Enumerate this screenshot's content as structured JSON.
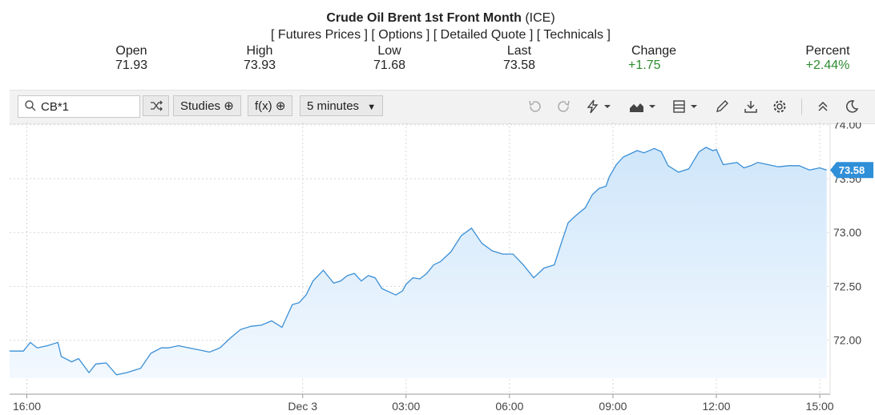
{
  "header": {
    "title_bold": "Crude Oil Brent 1st Front Month",
    "title_exchange": "(ICE)",
    "links": [
      "[ Futures Prices ]",
      "[ Options ]",
      "[ Detailed Quote ]",
      "[ Technicals ]"
    ]
  },
  "stats": [
    {
      "label": "Open",
      "value": "71.93"
    },
    {
      "label": "High",
      "value": "73.93"
    },
    {
      "label": "Low",
      "value": "71.68"
    },
    {
      "label": "Last",
      "value": "73.58"
    },
    {
      "label": "Change",
      "value": "+1.75"
    },
    {
      "label": "Percent",
      "value": "+2.44%"
    }
  ],
  "toolbar": {
    "symbol": "CB*1",
    "studies_label": "Studies",
    "fx_label": "f(x)",
    "interval_label": "5 minutes",
    "icons": [
      "undo-icon",
      "redo-icon",
      "flash-icon",
      "chart-type-icon",
      "template-icon",
      "draw-icon",
      "download-icon",
      "settings-icon",
      "collapse-icon",
      "dark-mode-icon"
    ]
  },
  "colors": {
    "line": "#3a8fd6",
    "fill_top": "#cfe6fa",
    "fill_bottom": "#f2f8fe",
    "positive": "#2e8b2e",
    "badge": "#2f8fd8"
  },
  "chart_data": {
    "type": "area",
    "last_price_label": "73.58",
    "yticks": [
      72.0,
      72.5,
      73.0,
      73.5,
      74.0
    ],
    "ytick_labels": [
      "72.00",
      "72.50",
      "73.00",
      "73.50",
      "74.00"
    ],
    "ylim": [
      71.5,
      74.02
    ],
    "xticks": [
      "16:00",
      "Dec 3",
      "03:00",
      "06:00",
      "09:00",
      "12:00",
      "15:00"
    ],
    "xtick_hours": [
      0,
      8,
      11,
      14,
      17,
      20,
      23
    ],
    "x_range_hours": [
      -0.5,
      23.3
    ],
    "grid": true,
    "series": [
      {
        "x_hours": [
          -0.5,
          -0.1,
          0.1,
          0.3,
          0.6,
          0.9,
          1.0,
          1.3,
          1.5,
          1.8,
          2.0,
          2.3,
          2.6,
          2.9,
          3.1,
          3.3,
          3.6,
          3.9,
          4.1,
          4.4,
          4.7,
          5.0,
          5.3,
          5.6,
          5.9,
          6.2,
          6.5,
          6.8,
          7.1,
          7.4,
          7.7,
          7.9,
          8.1,
          8.3,
          8.6,
          8.9,
          9.1,
          9.3,
          9.5,
          9.7,
          9.9,
          10.1,
          10.3,
          10.5,
          10.7,
          10.9,
          11.0,
          11.2,
          11.4,
          11.6,
          11.8,
          12.0,
          12.3,
          12.6,
          12.9,
          13.2,
          13.5,
          13.8,
          14.1,
          14.4,
          14.7,
          15.0,
          15.3,
          15.5,
          15.7,
          15.9,
          16.2,
          16.4,
          16.6,
          16.8,
          16.9,
          17.1,
          17.3,
          17.5,
          17.7,
          17.9,
          18.2,
          18.4,
          18.6,
          18.9,
          19.2,
          19.5,
          19.7,
          19.9,
          20.0,
          20.2,
          20.4,
          20.6,
          20.8,
          21.0,
          21.2,
          21.5,
          21.8,
          22.1,
          22.4,
          22.7,
          23.0,
          23.2
        ],
        "values": [
          71.9,
          71.9,
          71.98,
          71.93,
          71.95,
          71.98,
          71.85,
          71.8,
          71.83,
          71.7,
          71.78,
          71.79,
          71.68,
          71.7,
          71.72,
          71.74,
          71.88,
          71.93,
          71.93,
          71.95,
          71.93,
          71.91,
          71.89,
          71.93,
          72.02,
          72.1,
          72.13,
          72.14,
          72.18,
          72.12,
          72.33,
          72.35,
          72.42,
          72.55,
          72.65,
          72.53,
          72.55,
          72.6,
          72.62,
          72.55,
          72.6,
          72.58,
          72.48,
          72.45,
          72.42,
          72.46,
          72.52,
          72.58,
          72.57,
          72.62,
          72.7,
          72.73,
          72.82,
          72.97,
          73.04,
          72.9,
          72.83,
          72.8,
          72.8,
          72.7,
          72.58,
          72.67,
          72.7,
          72.9,
          73.09,
          73.15,
          73.23,
          73.35,
          73.41,
          73.43,
          73.52,
          73.63,
          73.7,
          73.73,
          73.76,
          73.74,
          73.78,
          73.75,
          73.62,
          73.56,
          73.59,
          73.75,
          73.79,
          73.76,
          73.77,
          73.63,
          73.64,
          73.65,
          73.6,
          73.62,
          73.65,
          73.63,
          73.61,
          73.62,
          73.62,
          73.58,
          73.6,
          73.58
        ]
      }
    ]
  }
}
